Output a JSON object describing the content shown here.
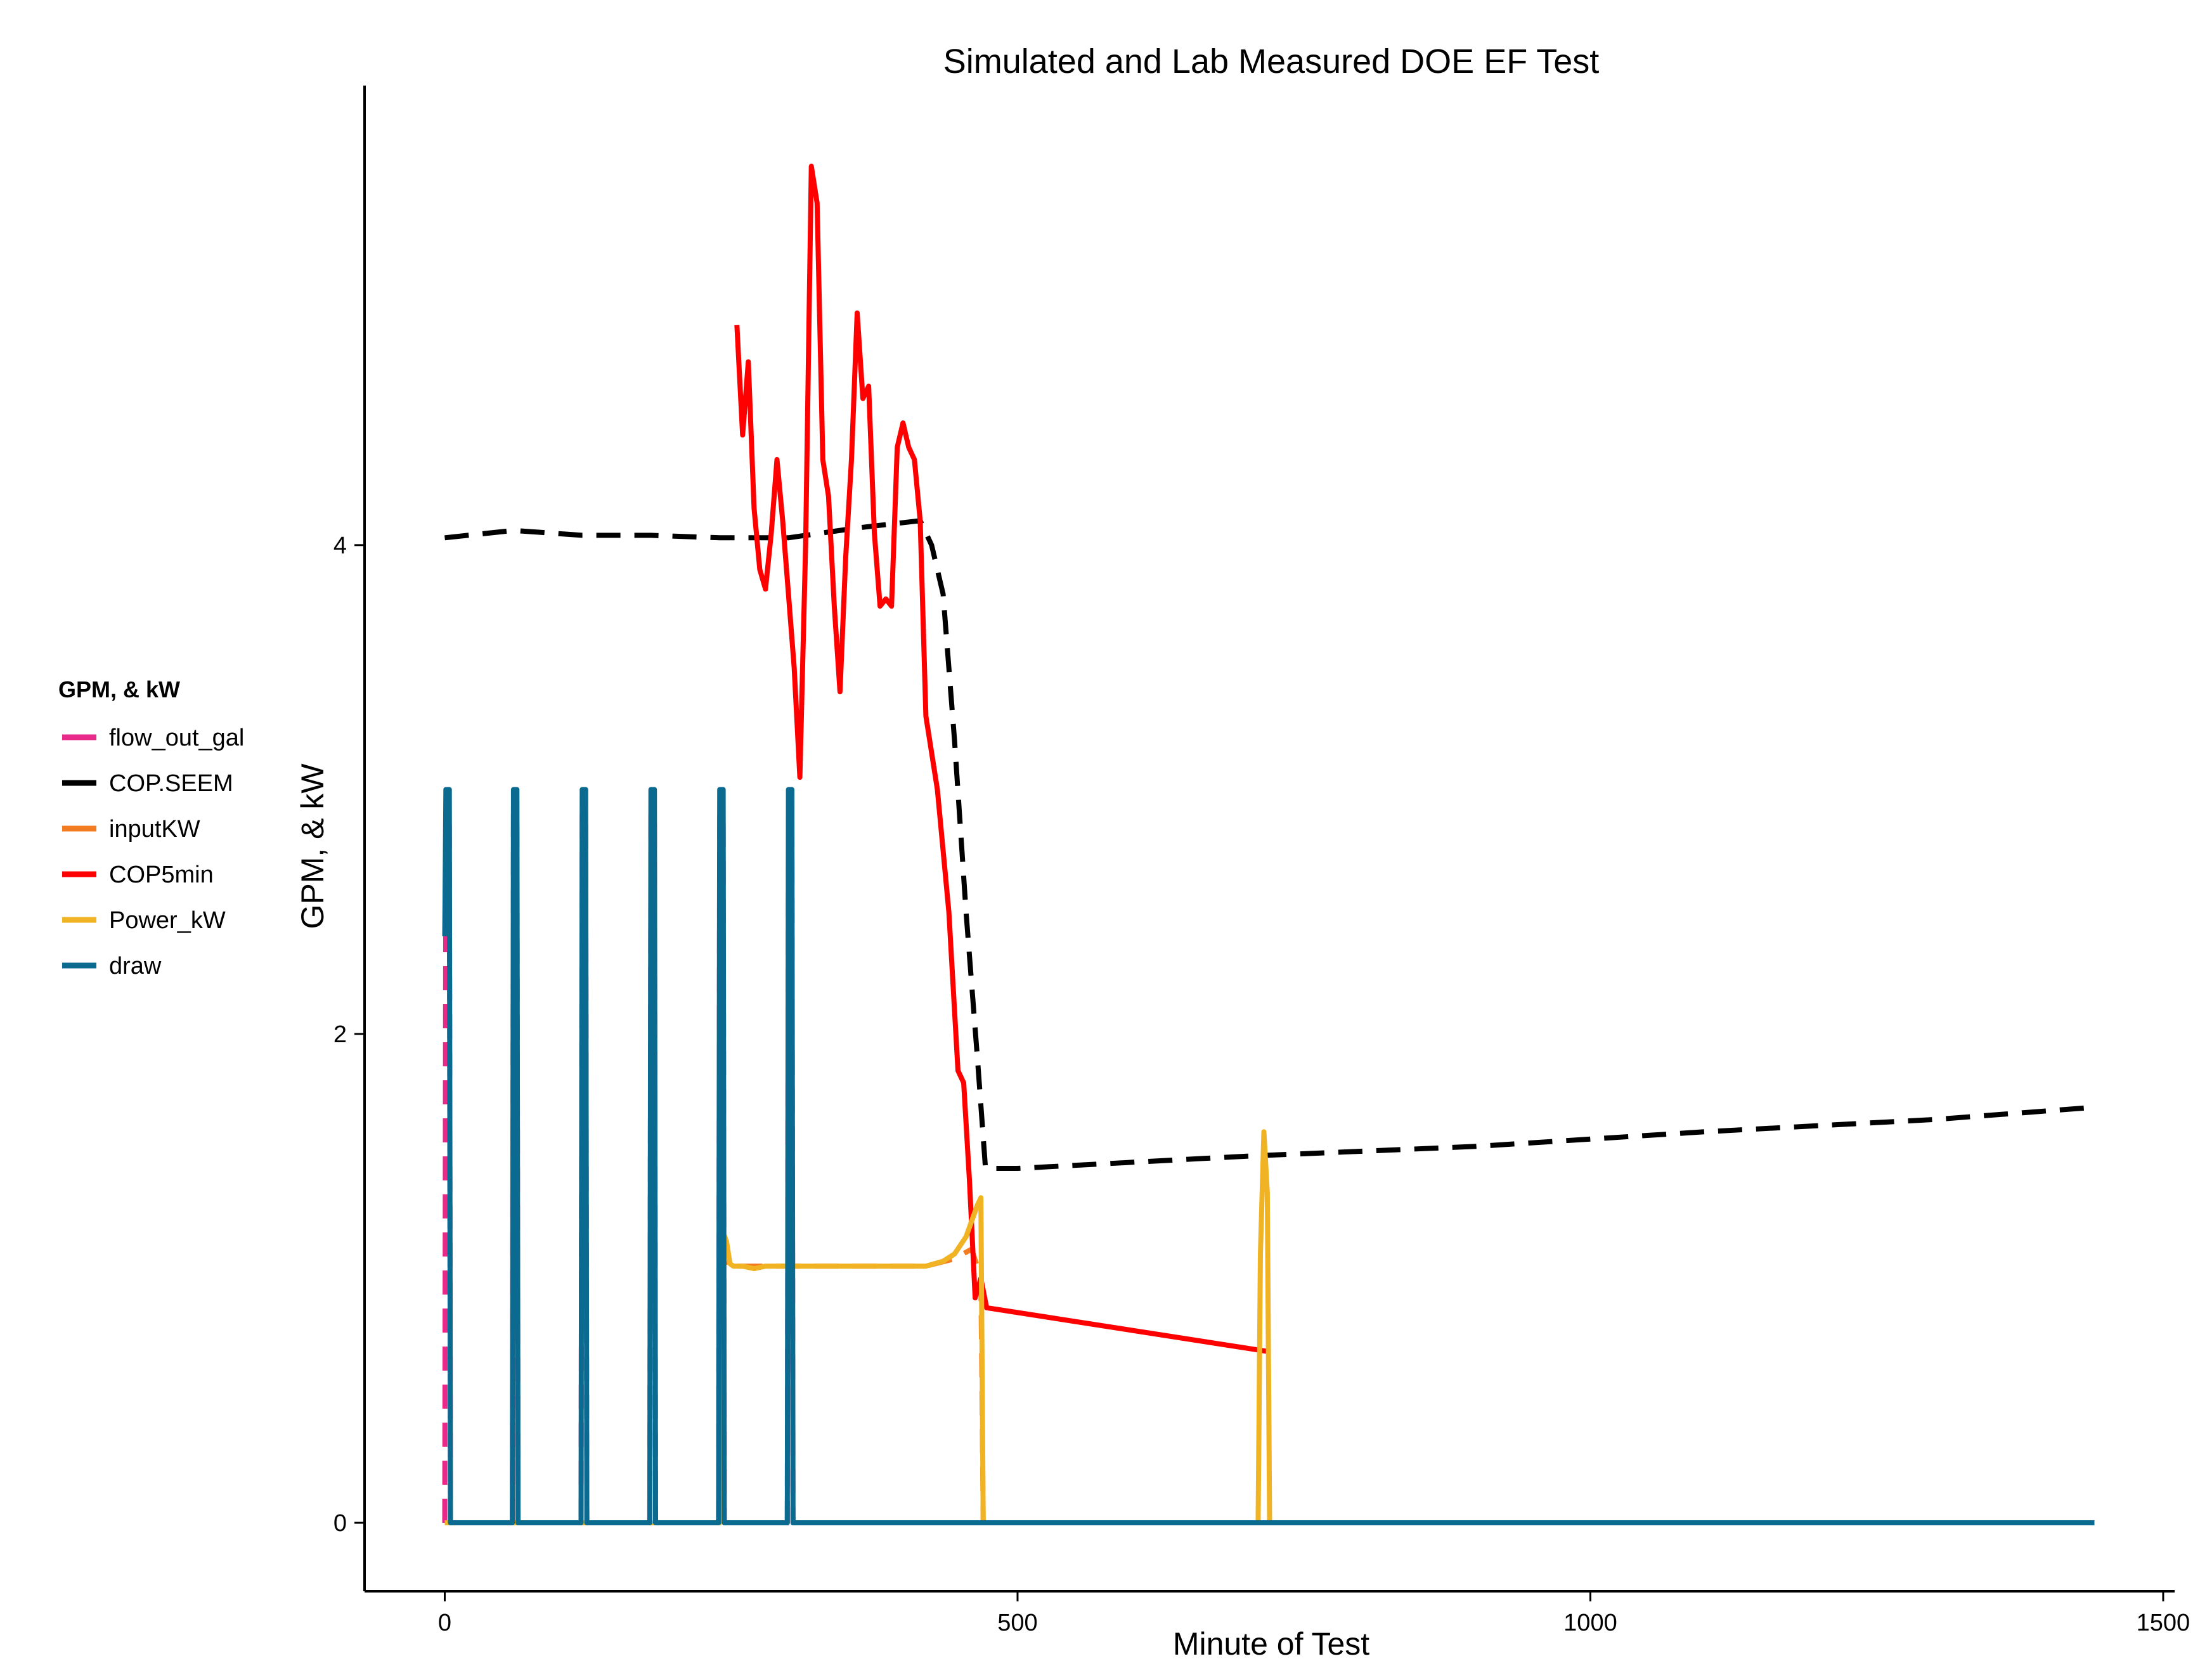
{
  "chart_data": {
    "type": "line",
    "title": "Simulated and Lab Measured DOE EF Test",
    "xlabel": "Minute of Test",
    "ylabel": "GPM, & kW",
    "xlim": [
      -70,
      1510
    ],
    "ylim": [
      -0.28,
      5.88
    ],
    "x_ticks": [
      0,
      500,
      1000,
      1500
    ],
    "y_ticks": [
      0,
      2,
      4
    ],
    "grid": false,
    "legend": {
      "title": "GPM, & kW",
      "placement": "left",
      "entries": [
        "flow_out_gal",
        "COP.SEEM",
        "inputKW",
        "COP5min",
        "Power_kW",
        "draw"
      ]
    },
    "series": [
      {
        "name": "flow_out_gal",
        "color": "#e7298a",
        "dash": "dashed",
        "points": [
          [
            0,
            0
          ],
          [
            1,
            2.9
          ],
          [
            4,
            2.9
          ],
          [
            5,
            0
          ],
          [
            59,
            0
          ],
          [
            60,
            2.9
          ],
          [
            63,
            2.9
          ],
          [
            64,
            0
          ],
          [
            119,
            0
          ],
          [
            120,
            2.9
          ],
          [
            123,
            2.9
          ],
          [
            124,
            0
          ],
          [
            179,
            0
          ],
          [
            180,
            2.9
          ],
          [
            183,
            2.9
          ],
          [
            184,
            0
          ],
          [
            239,
            0
          ],
          [
            240,
            2.9
          ],
          [
            243,
            2.9
          ],
          [
            244,
            0
          ],
          [
            299,
            0
          ],
          [
            300,
            2.9
          ],
          [
            303,
            2.9
          ],
          [
            304,
            0
          ],
          [
            1440,
            0
          ]
        ]
      },
      {
        "name": "COP.SEEM",
        "color": "#000000",
        "dash": "dashed",
        "points": [
          [
            0,
            4.03
          ],
          [
            60,
            4.06
          ],
          [
            120,
            4.04
          ],
          [
            180,
            4.04
          ],
          [
            240,
            4.03
          ],
          [
            300,
            4.03
          ],
          [
            360,
            4.07
          ],
          [
            415,
            4.1
          ],
          [
            425,
            4.0
          ],
          [
            435,
            3.8
          ],
          [
            445,
            3.2
          ],
          [
            455,
            2.5
          ],
          [
            465,
            1.9
          ],
          [
            472,
            1.45
          ],
          [
            500,
            1.45
          ],
          [
            700,
            1.5
          ],
          [
            900,
            1.54
          ],
          [
            1100,
            1.6
          ],
          [
            1300,
            1.65
          ],
          [
            1440,
            1.7
          ]
        ]
      },
      {
        "name": "inputKW",
        "color": "#f47c20",
        "dash": "dashed",
        "points": [
          [
            240,
            1.15
          ],
          [
            245,
            1.05
          ],
          [
            300,
            1.05
          ],
          [
            350,
            1.05
          ],
          [
            420,
            1.05
          ],
          [
            445,
            1.08
          ],
          [
            460,
            1.12
          ],
          [
            468,
            1.0
          ],
          [
            470,
            0
          ]
        ]
      },
      {
        "name": "COP5min",
        "color": "#ff0000",
        "dash": "solid",
        "points": [
          [
            255,
            4.9
          ],
          [
            260,
            4.45
          ],
          [
            265,
            4.75
          ],
          [
            270,
            4.15
          ],
          [
            275,
            3.9
          ],
          [
            280,
            3.82
          ],
          [
            285,
            4.05
          ],
          [
            290,
            4.35
          ],
          [
            295,
            4.1
          ],
          [
            300,
            3.8
          ],
          [
            305,
            3.5
          ],
          [
            310,
            3.05
          ],
          [
            315,
            4.0
          ],
          [
            320,
            5.55
          ],
          [
            325,
            5.4
          ],
          [
            330,
            4.35
          ],
          [
            335,
            4.2
          ],
          [
            340,
            3.75
          ],
          [
            345,
            3.4
          ],
          [
            350,
            3.95
          ],
          [
            355,
            4.35
          ],
          [
            360,
            4.95
          ],
          [
            365,
            4.6
          ],
          [
            370,
            4.65
          ],
          [
            375,
            4.05
          ],
          [
            380,
            3.75
          ],
          [
            385,
            3.78
          ],
          [
            390,
            3.75
          ],
          [
            395,
            4.4
          ],
          [
            400,
            4.5
          ],
          [
            405,
            4.4
          ],
          [
            410,
            4.35
          ],
          [
            415,
            4.1
          ],
          [
            420,
            3.3
          ],
          [
            430,
            3.0
          ],
          [
            440,
            2.5
          ],
          [
            448,
            1.85
          ],
          [
            453,
            1.8
          ],
          [
            458,
            1.4
          ],
          [
            463,
            0.92
          ],
          [
            468,
            1.0
          ],
          [
            473,
            0.88
          ],
          [
            720,
            0.7
          ]
        ]
      },
      {
        "name": "Power_kW",
        "color": "#f0b323",
        "dash": "solid",
        "points": [
          [
            0,
            0
          ],
          [
            240,
            0
          ],
          [
            242,
            1.2
          ],
          [
            246,
            1.15
          ],
          [
            249,
            1.06
          ],
          [
            252,
            1.05
          ],
          [
            260,
            1.05
          ],
          [
            270,
            1.04
          ],
          [
            280,
            1.05
          ],
          [
            300,
            1.05
          ],
          [
            350,
            1.05
          ],
          [
            400,
            1.05
          ],
          [
            420,
            1.05
          ],
          [
            435,
            1.07
          ],
          [
            445,
            1.1
          ],
          [
            455,
            1.17
          ],
          [
            465,
            1.3
          ],
          [
            468,
            1.33
          ],
          [
            470,
            0
          ],
          [
            710,
            0
          ],
          [
            712,
            1.1
          ],
          [
            715,
            1.6
          ],
          [
            718,
            1.35
          ],
          [
            720,
            0
          ],
          [
            1440,
            0
          ]
        ]
      },
      {
        "name": "draw",
        "color": "#0b6a8f",
        "dash": "solid",
        "points": [
          [
            0,
            2.4
          ],
          [
            1,
            3.0
          ],
          [
            4,
            3.0
          ],
          [
            5,
            0
          ],
          [
            59,
            0
          ],
          [
            60,
            3.0
          ],
          [
            63,
            3.0
          ],
          [
            64,
            0
          ],
          [
            119,
            0
          ],
          [
            120,
            3.0
          ],
          [
            123,
            3.0
          ],
          [
            124,
            0
          ],
          [
            179,
            0
          ],
          [
            180,
            3.0
          ],
          [
            183,
            3.0
          ],
          [
            184,
            0
          ],
          [
            239,
            0
          ],
          [
            240,
            3.0
          ],
          [
            243,
            3.0
          ],
          [
            244,
            0
          ],
          [
            299,
            0
          ],
          [
            300,
            3.0
          ],
          [
            303,
            3.0
          ],
          [
            304,
            0
          ],
          [
            1440,
            0
          ]
        ]
      }
    ]
  }
}
